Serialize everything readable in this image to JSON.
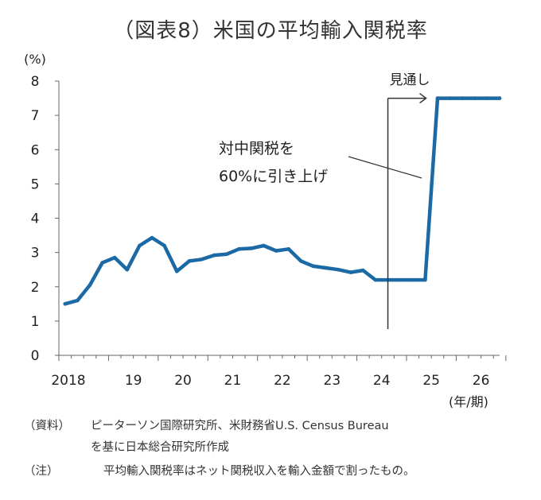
{
  "title": "（図表8）米国の平均輸入関税率",
  "chart_data": {
    "type": "line",
    "title": "（図表8）米国の平均輸入関税率",
    "unit_label": "(%)",
    "xlabel": "(年/期)",
    "ylim": [
      0,
      8
    ],
    "y_ticks": [
      "0",
      "1",
      "2",
      "3",
      "4",
      "5",
      "6",
      "7",
      "8"
    ],
    "xlim": [
      2018.0,
      2026.875
    ],
    "x_tick_labels": [
      {
        "x": 2018.0,
        "label": "2018"
      },
      {
        "x": 2019.0,
        "label": "19"
      },
      {
        "x": 2020.0,
        "label": "20"
      },
      {
        "x": 2021.0,
        "label": "21"
      },
      {
        "x": 2022.0,
        "label": "22"
      },
      {
        "x": 2023.0,
        "label": "23"
      },
      {
        "x": 2024.0,
        "label": "24"
      },
      {
        "x": 2025.0,
        "label": "25"
      },
      {
        "x": 2026.0,
        "label": "26"
      }
    ],
    "grid": false,
    "color": "#1b6aa5",
    "series": [
      {
        "x": [
          2018.125,
          2018.375,
          2018.625,
          2018.875,
          2019.125,
          2019.375,
          2019.625,
          2019.875,
          2020.125,
          2020.375,
          2020.625,
          2020.875,
          2021.125,
          2021.375,
          2021.625,
          2021.875,
          2022.125,
          2022.375,
          2022.625,
          2022.875,
          2023.125,
          2023.375,
          2023.625,
          2023.875,
          2024.125,
          2024.375,
          2024.625,
          2024.875,
          2025.125,
          2025.375,
          2025.625,
          2025.875,
          2026.125,
          2026.375,
          2026.625,
          2026.875
        ],
        "values": [
          1.5,
          1.6,
          2.05,
          2.7,
          2.85,
          2.5,
          3.2,
          3.43,
          3.2,
          2.45,
          2.75,
          2.8,
          2.92,
          2.95,
          3.1,
          3.12,
          3.2,
          3.05,
          3.1,
          2.75,
          2.6,
          2.55,
          2.5,
          2.42,
          2.48,
          2.2,
          2.2,
          2.2,
          2.2,
          2.2,
          7.5,
          7.5,
          7.5,
          7.5,
          7.5,
          7.5
        ]
      }
    ],
    "annotations": {
      "forecast_label": "見通し",
      "forecast_start": 2024.625,
      "tariff_note_line1": "対中関税を",
      "tariff_note_line2": "60%に引き上げ"
    }
  },
  "notes": {
    "source_tag": "（資料）",
    "source_line1": "ピーターソン国際研究所、米財務省U.S. Census Bureau",
    "source_line2": "を基に日本総合研究所作成",
    "note_tag": "（注）",
    "note_text": "平均輸入関税率はネット関税収入を輸入金額で割ったもの。"
  }
}
